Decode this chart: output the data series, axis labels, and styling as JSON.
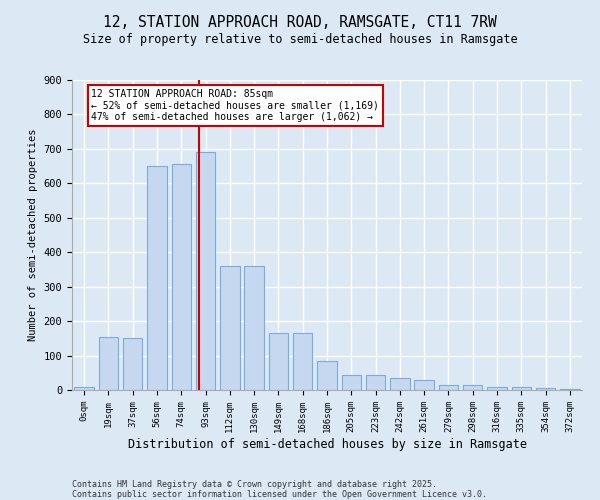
{
  "title1": "12, STATION APPROACH ROAD, RAMSGATE, CT11 7RW",
  "title2": "Size of property relative to semi-detached houses in Ramsgate",
  "xlabel": "Distribution of semi-detached houses by size in Ramsgate",
  "ylabel": "Number of semi-detached properties",
  "categories": [
    "0sqm",
    "19sqm",
    "37sqm",
    "56sqm",
    "74sqm",
    "93sqm",
    "112sqm",
    "130sqm",
    "149sqm",
    "168sqm",
    "186sqm",
    "205sqm",
    "223sqm",
    "242sqm",
    "261sqm",
    "279sqm",
    "298sqm",
    "316sqm",
    "335sqm",
    "354sqm",
    "372sqm"
  ],
  "values": [
    10,
    155,
    150,
    650,
    655,
    690,
    360,
    360,
    165,
    165,
    85,
    45,
    45,
    35,
    30,
    15,
    15,
    10,
    10,
    5,
    2
  ],
  "bar_color": "#c5d8f0",
  "bar_edge_color": "#7aabda",
  "background_color": "#dce9f5",
  "grid_color": "#ffffff",
  "annotation_text": "12 STATION APPROACH ROAD: 85sqm\n← 52% of semi-detached houses are smaller (1,169)\n47% of semi-detached houses are larger (1,062) →",
  "vline_x": 4.73,
  "vline_color": "#cc0000",
  "annotation_box_color": "#ffffff",
  "annotation_box_edge": "#cc0000",
  "footer1": "Contains HM Land Registry data © Crown copyright and database right 2025.",
  "footer2": "Contains public sector information licensed under the Open Government Licence v3.0.",
  "ylim": [
    0,
    900
  ],
  "yticks": [
    0,
    100,
    200,
    300,
    400,
    500,
    600,
    700,
    800,
    900
  ]
}
